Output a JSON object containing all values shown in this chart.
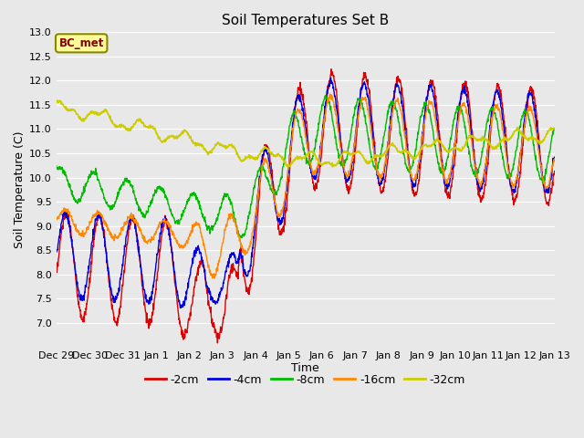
{
  "title": "Soil Temperatures Set B",
  "xlabel": "Time",
  "ylabel": "Soil Temperature (C)",
  "ylim": [
    6.5,
    13.0
  ],
  "yticks": [
    7.0,
    7.5,
    8.0,
    8.5,
    9.0,
    9.5,
    10.0,
    10.5,
    11.0,
    11.5,
    12.0,
    12.5,
    13.0
  ],
  "xtick_labels": [
    "Dec 29",
    "Dec 30",
    "Dec 31",
    "Jan 1",
    "Jan 2",
    "Jan 3",
    "Jan 4",
    "Jan 5",
    "Jan 6",
    "Jan 7",
    "Jan 8",
    "Jan 9",
    "Jan 10",
    "Jan 11",
    "Jan 12",
    "Jan 13"
  ],
  "colors": {
    "-2cm": "#dd0000",
    "-4cm": "#0000dd",
    "-8cm": "#00bb00",
    "-16cm": "#ff8800",
    "-32cm": "#cccc00"
  },
  "legend_entries": [
    "-2cm",
    "-4cm",
    "-8cm",
    "-16cm",
    "-32cm"
  ],
  "annotation_text": "BC_met",
  "annotation_bg": "#ffff99",
  "annotation_border": "#888800",
  "fig_facecolor": "#e8e8e8",
  "plot_facecolor": "#e8e8e8",
  "grid_color": "#ffffff"
}
